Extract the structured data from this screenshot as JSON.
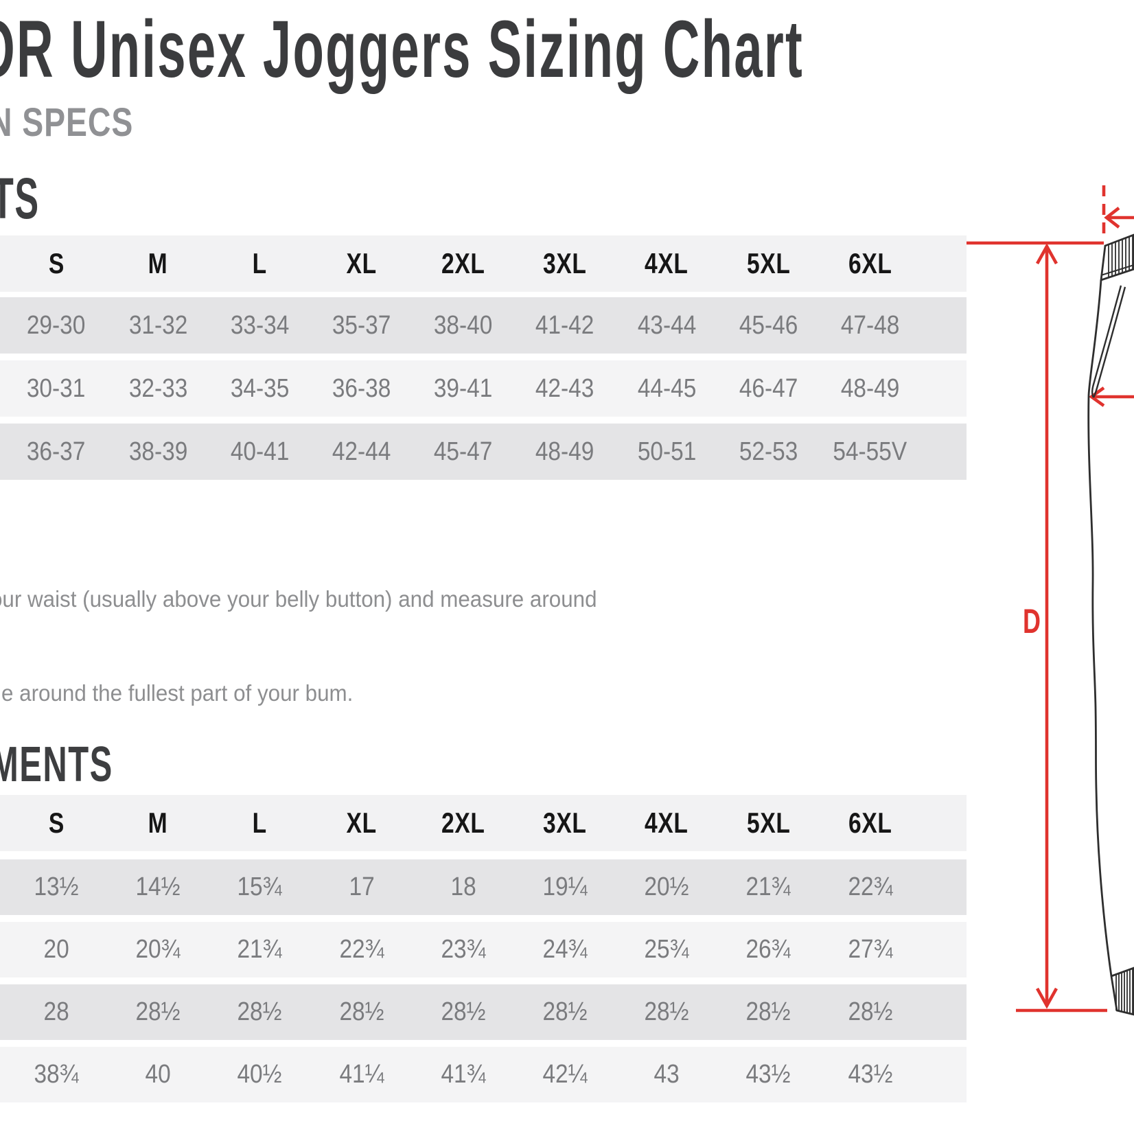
{
  "page": {
    "title": "OR Unisex Joggers Sizing Chart",
    "subtitle": "N SPECS",
    "section1_heading": "TS",
    "section2_heading": "MENTS",
    "instructions": {
      "line1": "our waist (usually above your belly button) and measure around",
      "line2": "e around the fullest part of your bum."
    }
  },
  "body_table": {
    "columns": [
      "S",
      "M",
      "L",
      "XL",
      "2XL",
      "3XL",
      "4XL",
      "5XL",
      "6XL"
    ],
    "rows": [
      [
        "29-30",
        "31-32",
        "33-34",
        "35-37",
        "38-40",
        "41-42",
        "43-44",
        "45-46",
        "47-48"
      ],
      [
        "30-31",
        "32-33",
        "34-35",
        "36-38",
        "39-41",
        "42-43",
        "44-45",
        "46-47",
        "48-49"
      ],
      [
        "36-37",
        "38-39",
        "40-41",
        "42-44",
        "45-47",
        "48-49",
        "50-51",
        "52-53",
        "54-55V"
      ]
    ]
  },
  "garment_table": {
    "columns": [
      "S",
      "M",
      "L",
      "XL",
      "2XL",
      "3XL",
      "4XL",
      "5XL",
      "6XL"
    ],
    "rows": [
      [
        "13½",
        "14½",
        "15¾",
        "17",
        "18",
        "19¼",
        "20½",
        "21¾",
        "22¾"
      ],
      [
        "20",
        "20¾",
        "21¾",
        "22¾",
        "23¾",
        "24¾",
        "25¾",
        "26¾",
        "27¾"
      ],
      [
        "28",
        "28½",
        "28½",
        "28½",
        "28½",
        "28½",
        "28½",
        "28½",
        "28½"
      ],
      [
        "38¾",
        "40",
        "40½",
        "41¼",
        "41¾",
        "42¼",
        "43",
        "43½",
        "43½"
      ]
    ]
  },
  "diagram": {
    "dimension_label": "D",
    "accent_color": "#e0332e",
    "line_color": "#2e2e2e"
  },
  "colors": {
    "header_band": "#f2f2f3",
    "row_dark": "#e4e4e6",
    "row_light": "#f4f4f5",
    "heading_dark": "#3d3e40",
    "heading_gray": "#909194",
    "cell_text": "#7a7b7e"
  }
}
